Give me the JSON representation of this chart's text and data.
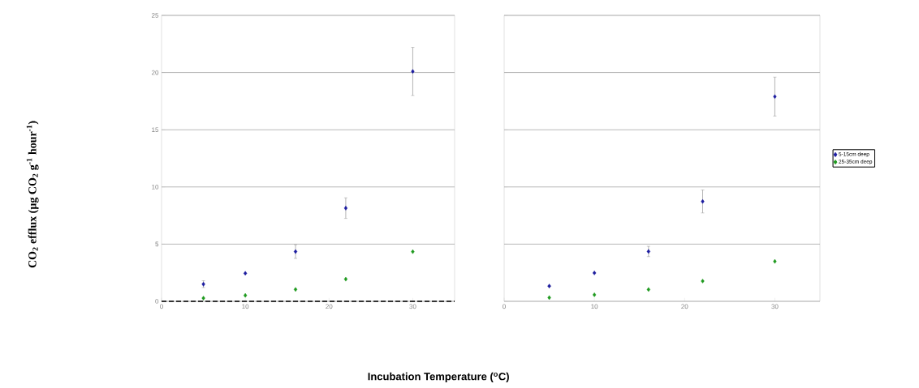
{
  "chart_data": [
    {
      "type": "scatter",
      "xlabel": "Incubation  Temperature ($^{o}$C)",
      "ylabel": "CO$_{2}$ efflux (µg CO$_{2}$ g$^{-1}$ hour$^{-1}$)",
      "x": [
        5,
        10,
        16,
        22,
        30
      ],
      "xlim": [
        0,
        35
      ],
      "xticks": [
        0,
        10,
        20,
        30
      ],
      "ylim": [
        0,
        25
      ],
      "yticks": [
        0,
        5,
        10,
        15,
        20,
        25
      ],
      "grid": "y",
      "marker": "diamond",
      "series": [
        {
          "color": "#1c1ca0",
          "values": [
            1.5,
            2.45,
            4.35,
            8.15,
            20.1
          ],
          "errors": [
            0.3,
            null,
            0.6,
            0.9,
            2.1
          ]
        },
        {
          "color": "#1f9a1f",
          "values": [
            0.28,
            0.52,
            1.04,
            1.94,
            4.34
          ]
        }
      ],
      "ref_lines": [
        {
          "axis": "y",
          "value": 0,
          "color": "#000000",
          "line_style": "dashed"
        }
      ]
    },
    {
      "type": "scatter",
      "x": [
        5,
        10,
        16,
        22,
        30
      ],
      "xlim": [
        0,
        35
      ],
      "xticks": [
        0,
        10,
        20,
        30
      ],
      "ylim": [
        0,
        25
      ],
      "yticks": [
        0,
        5,
        10,
        15,
        20,
        25
      ],
      "tick_labels": "x",
      "grid": "y",
      "marker": "diamond",
      "legend": "right",
      "series": [
        {
          "name": "5-15cm deep",
          "color": "#1c1ca0",
          "values": [
            1.33,
            2.48,
            4.36,
            8.73,
            17.9
          ],
          "errors": [
            null,
            null,
            0.45,
            1.0,
            1.7
          ]
        },
        {
          "name": "25-35cm deep",
          "color": "#1f9a1f",
          "values": [
            0.32,
            0.57,
            1.03,
            1.77,
            3.49
          ]
        }
      ]
    }
  ]
}
